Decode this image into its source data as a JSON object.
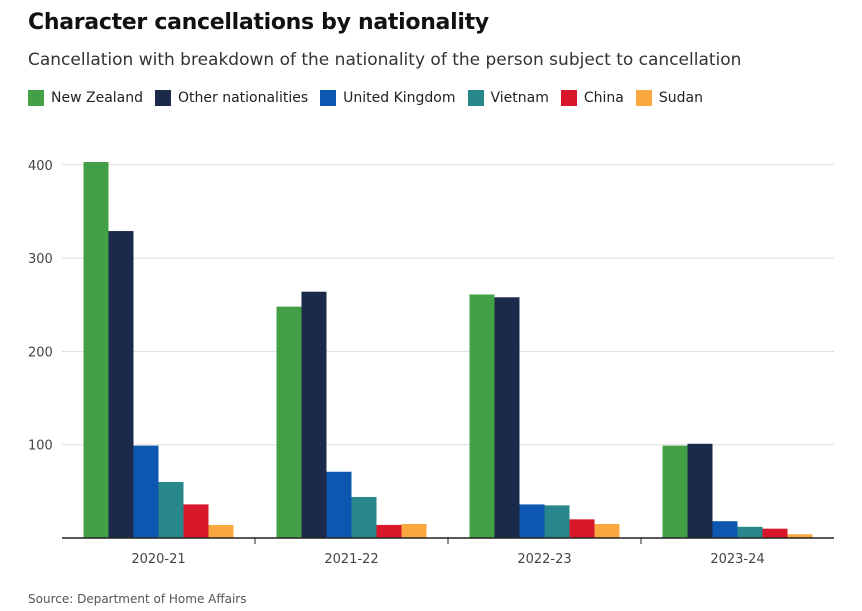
{
  "title": "Character cancellations by nationality",
  "subtitle": "Cancellation with breakdown of the nationality of the person subject to cancellation",
  "source": "Source: Department of Home Affairs",
  "chart_data": {
    "type": "bar",
    "title": "Character cancellations by nationality",
    "subtitle": "Cancellation with breakdown of the nationality of the person subject to cancellation",
    "categories": [
      "2020-21",
      "2021-22",
      "2022-23",
      "2023-24"
    ],
    "series": [
      {
        "name": "New Zealand",
        "color": "#43a047",
        "values": [
          403,
          248,
          261,
          99
        ]
      },
      {
        "name": "Other nationalities",
        "color": "#1b2a4a",
        "values": [
          329,
          264,
          258,
          101
        ]
      },
      {
        "name": "United Kingdom",
        "color": "#0d57b0",
        "values": [
          99,
          71,
          36,
          18
        ]
      },
      {
        "name": "Vietnam",
        "color": "#27878a",
        "values": [
          60,
          44,
          35,
          12
        ]
      },
      {
        "name": "China",
        "color": "#d9172b",
        "values": [
          36,
          14,
          20,
          10
        ]
      },
      {
        "name": "Sudan",
        "color": "#f9a73e",
        "values": [
          14,
          15,
          15,
          4
        ]
      }
    ],
    "yticks": [
      100,
      200,
      300,
      400
    ],
    "ylim": [
      0,
      420
    ],
    "xlabel": "",
    "ylabel": "",
    "grid": true,
    "legend_position": "top-left"
  }
}
